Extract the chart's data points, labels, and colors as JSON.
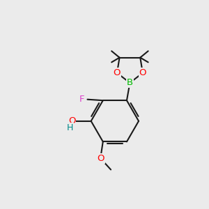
{
  "bg_color": "#ebebeb",
  "bond_color": "#1a1a1a",
  "bond_width": 1.5,
  "atom_colors": {
    "B": "#00bb00",
    "O": "#ff0000",
    "F": "#dd44cc",
    "OH_O": "#ff0000",
    "OH_H": "#008888",
    "C": "#1a1a1a"
  },
  "font_size": 9
}
